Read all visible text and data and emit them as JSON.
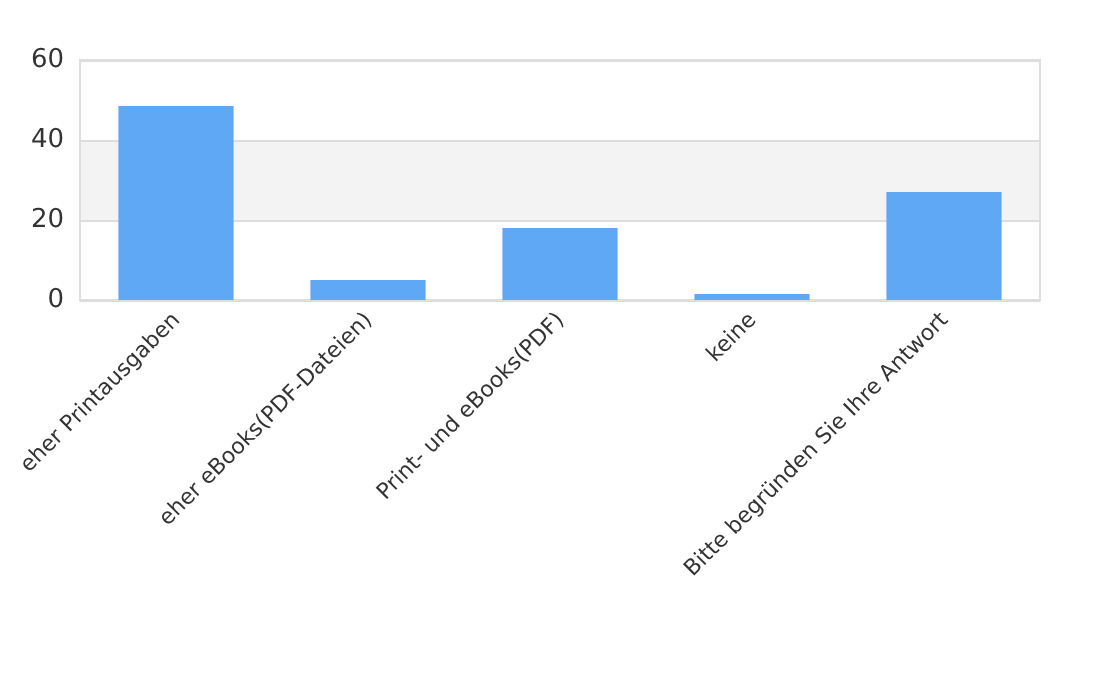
{
  "chart_data": {
    "type": "bar",
    "categories": [
      "eher Printausgaben",
      "eher eBooks(PDF-Dateien)",
      "Print- und eBooks(PDF)",
      "keine",
      "Bitte begründen Sie Ihre Antwort"
    ],
    "values": [
      48.5,
      5,
      18,
      1.5,
      27
    ],
    "color": "#5fa8f6",
    "ylim": [
      0,
      60
    ],
    "yticks": [
      0,
      20,
      40,
      60
    ],
    "grid": "y",
    "bands": [
      {
        "axis": "y",
        "from": 20,
        "to": 40,
        "color": "#f3f3f3"
      }
    ]
  }
}
